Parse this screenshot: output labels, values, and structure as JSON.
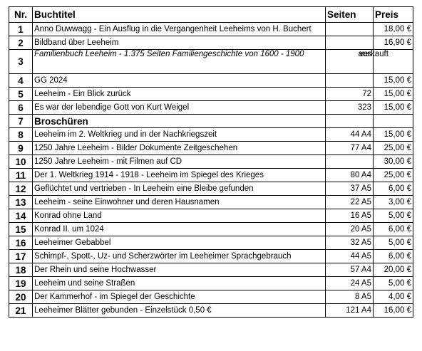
{
  "header": {
    "nr": "Nr.",
    "title": "Buchtitel",
    "pages": "Seiten",
    "price": "Preis"
  },
  "rows": [
    {
      "nr": "1",
      "title": "Anno Duwwagg - Ein Ausflug in die Vergangenheit Leeheims von H. Buchert",
      "pages": "",
      "price": "18,00 €"
    },
    {
      "nr": "2",
      "title": "Bildband über Leeheim",
      "pages": "",
      "price": "16,90 €"
    },
    {
      "nr": "3",
      "title": "Familienbuch Leeheim - 1.375 Seiten Familiengeschichte von 1600 - 1900",
      "pages": "aus",
      "price": "verkauft"
    },
    {
      "nr": "4",
      "title": "GG 2024",
      "pages": "",
      "price": "15,00 €"
    },
    {
      "nr": "5",
      "title": "Leeheim - Ein Blick zurück",
      "pages": "72",
      "price": "15,00 €"
    },
    {
      "nr": "6",
      "title": "Es war der lebendige Gott von Kurt Weigel",
      "pages": "323",
      "price": "15,00 €"
    },
    {
      "nr": "7",
      "title": "Broschüren",
      "pages": "",
      "price": ""
    },
    {
      "nr": "8",
      "title": "Leeheim im 2. Weltkrieg und in der Nachkriegszeit",
      "pages": "44 A4",
      "price": "15,00 €"
    },
    {
      "nr": "9",
      "title": "1250 Jahre Leeheim - Bilder Dokumente Zeitgeschehen",
      "pages": "77 A4",
      "price": "25,00 €"
    },
    {
      "nr": "10",
      "title": "1250 Jahre Leeheim - mit Filmen auf CD",
      "pages": "",
      "price": "30,00 €"
    },
    {
      "nr": "11",
      "title": "Der 1. Weltkrieg 1914 - 1918 - Leeheim im Spiegel des Krieges",
      "pages": "80 A4",
      "price": "25,00 €"
    },
    {
      "nr": "12",
      "title": "Geflüchtet und vertrieben - In Leeheim eine Bleibe gefunden",
      "pages": "37 A5",
      "price": "6,00 €"
    },
    {
      "nr": "13",
      "title": "Leeheim - seine Einwohner und deren Hausnamen",
      "pages": "22 A5",
      "price": "3,00 €"
    },
    {
      "nr": "14",
      "title": "Konrad ohne Land",
      "pages": "16 A5",
      "price": "5,00 €"
    },
    {
      "nr": "15",
      "title": "Konrad II. um 1024",
      "pages": "20 A5",
      "price": "6,00 €"
    },
    {
      "nr": "16",
      "title": "Leeheimer Gebabbel",
      "pages": "32 A5",
      "price": "5,00 €"
    },
    {
      "nr": "17",
      "title": "Schimpf-, Spott-, Uz- und Scherzwörter im Leeheimer Sprachgebrauch",
      "pages": "44 A5",
      "price": "6,00 €"
    },
    {
      "nr": "18",
      "title": "Der Rhein und seine Hochwasser",
      "pages": "57 A4",
      "price": "20,00 €"
    },
    {
      "nr": "19",
      "title": "Leeheim und seine Straßen",
      "pages": "24 A5",
      "price": "5,00 €"
    },
    {
      "nr": "20",
      "title": "Der Kammerhof - im Spiegel der Geschichte",
      "pages": "8 A5",
      "price": "4,00 €"
    },
    {
      "nr": "21",
      "title": "Leeheimer Blätter gebunden - Einzelstück 0,50 €",
      "pages": "121 A4",
      "price": "16,00 €"
    }
  ]
}
